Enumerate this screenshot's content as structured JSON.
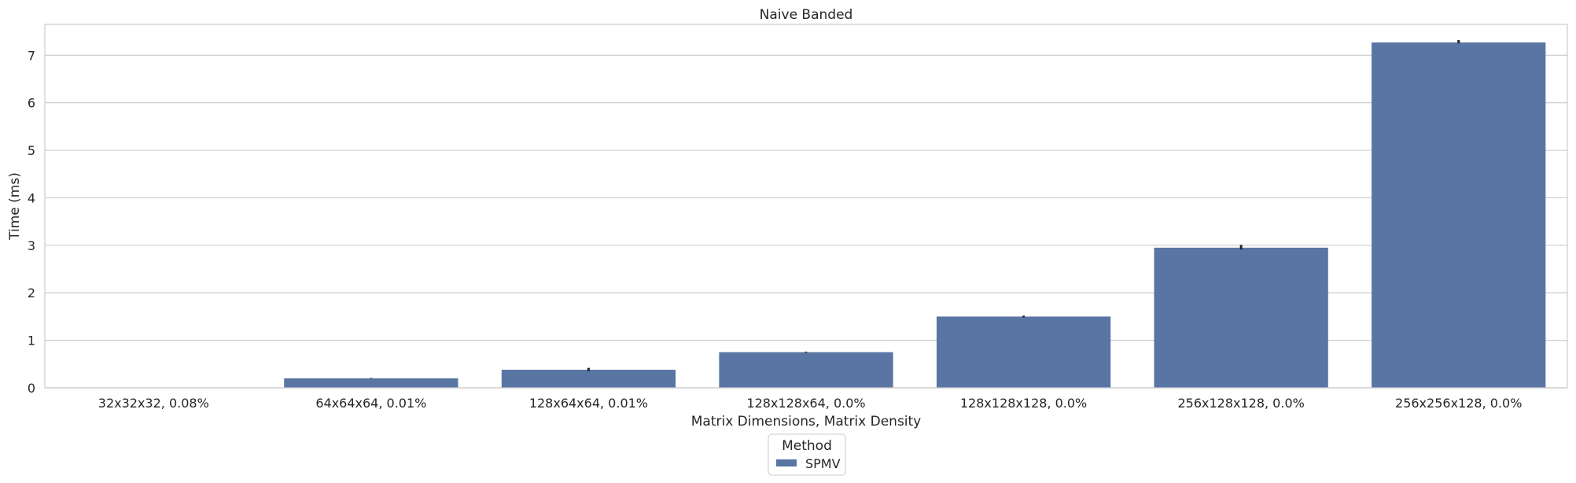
{
  "chart_data": {
    "type": "bar",
    "title": "Naive Banded",
    "xlabel": "Matrix Dimensions, Matrix Density",
    "ylabel": "Time (ms)",
    "categories": [
      "32x32x32, 0.08%",
      "64x64x64, 0.01%",
      "128x64x64, 0.01%",
      "128x128x64, 0.0%",
      "128x128x128, 0.0%",
      "256x128x128, 0.0%",
      "256x256x128, 0.0%"
    ],
    "series": [
      {
        "name": "SPMV",
        "values": [
          0.0,
          0.2,
          0.38,
          0.75,
          1.5,
          2.95,
          7.27
        ],
        "error_low": [
          0.0,
          0.2,
          0.35,
          0.74,
          1.48,
          2.91,
          7.25
        ],
        "error_high": [
          0.0,
          0.21,
          0.42,
          0.76,
          1.52,
          3.01,
          7.32
        ],
        "color": "#5975a4"
      }
    ],
    "yticks": [
      0,
      1,
      2,
      3,
      4,
      5,
      6,
      7
    ],
    "ylim": [
      0,
      7.65
    ],
    "grid": "y",
    "legend": {
      "title": "Method",
      "placement": "bottom-center"
    },
    "colors": {
      "grid": "#cccccc",
      "spine": "#cccccc",
      "errorbar": "#262626"
    }
  }
}
